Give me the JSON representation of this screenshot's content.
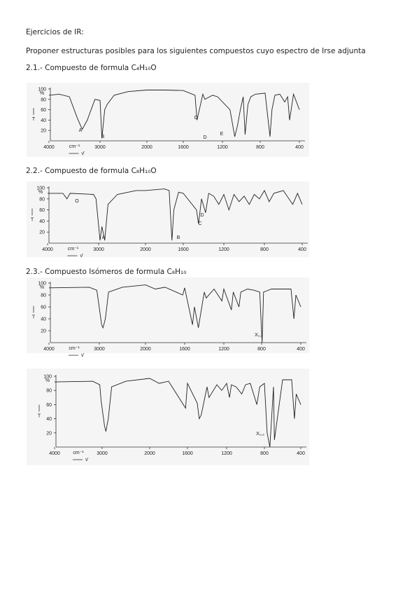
{
  "header": {
    "title": "Ejercicios de IR:",
    "instruction": "Proponer estructuras posibles para los siguientes compuestos cuyo espectro de Irse adjunta"
  },
  "sections": [
    {
      "heading": "2.1.- Compuesto de formula  C₄H₁₀O",
      "spectra": [
        {
          "y_label": "T",
          "y_unit": "%",
          "x_unit": "cm⁻¹",
          "x_symbol": "ν̄",
          "yticks": [
            100,
            80,
            60,
            40,
            20
          ],
          "xticks": [
            4000,
            3000,
            2000,
            1600,
            1200,
            800,
            400
          ],
          "peak_labels": [
            "A",
            "B",
            "C",
            "D",
            "E"
          ],
          "trace": {
            "x": [
              4000,
              3800,
              3600,
              3450,
              3350,
              3250,
              3100,
              3000,
              2960,
              2900,
              2850,
              2700,
              2400,
              2000,
              1800,
              1600,
              1480,
              1460,
              1400,
              1380,
              1300,
              1250,
              1120,
              1070,
              1040,
              1010,
              980,
              960,
              930,
              900,
              850,
              750,
              700,
              680,
              650,
              600,
              550,
              520,
              500,
              460,
              420,
              400
            ],
            "y": [
              88,
              90,
              85,
              45,
              22,
              40,
              80,
              78,
              5,
              60,
              70,
              88,
              95,
              98,
              98,
              97,
              88,
              40,
              90,
              80,
              88,
              85,
              60,
              8,
              30,
              60,
              85,
              12,
              70,
              85,
              90,
              92,
              8,
              60,
              88,
              90,
              75,
              85,
              40,
              90,
              70,
              60
            ]
          }
        }
      ]
    },
    {
      "heading": "2.2.- Compuesto de formula C₈H₁₀O",
      "spectra": [
        {
          "y_label": "T",
          "y_unit": "%",
          "x_unit": "cm⁻¹",
          "x_symbol": "ν̄",
          "yticks": [
            100,
            80,
            60,
            40,
            20
          ],
          "xticks": [
            4000,
            3000,
            2000,
            1600,
            1200,
            800,
            400
          ],
          "peak_labels": [
            "O",
            "A",
            "B",
            "C",
            "D"
          ],
          "trace": {
            "x": [
              4000,
              3700,
              3620,
              3560,
              3100,
              3050,
              2970,
              2930,
              2870,
              2800,
              2600,
              2200,
              2000,
              1800,
              1750,
              1720,
              1700,
              1650,
              1600,
              1470,
              1450,
              1420,
              1380,
              1350,
              1300,
              1250,
              1200,
              1150,
              1100,
              1050,
              1000,
              950,
              900,
              850,
              800,
              750,
              700,
              600,
              500,
              450,
              400
            ],
            "y": [
              90,
              90,
              80,
              90,
              88,
              80,
              5,
              30,
              5,
              70,
              88,
              95,
              95,
              98,
              95,
              5,
              60,
              92,
              90,
              60,
              35,
              80,
              55,
              90,
              85,
              70,
              88,
              60,
              88,
              75,
              85,
              70,
              88,
              80,
              95,
              75,
              90,
              95,
              70,
              90,
              70
            ]
          }
        }
      ]
    },
    {
      "heading": "2.3.- Compuesto Isómeros de formula C₈H₁₀",
      "spectra": [
        {
          "y_label": "T",
          "y_unit": "%",
          "x_unit": "cm⁻¹",
          "x_symbol": "ν̄",
          "yticks": [
            100,
            80,
            60,
            40,
            20
          ],
          "xticks": [
            4000,
            3000,
            2000,
            1600,
            1200,
            800,
            400
          ],
          "peak_labels": [
            "X₁,₂"
          ],
          "trace": {
            "x": [
              4000,
              3200,
              3050,
              3020,
              2950,
              2920,
              2870,
              2800,
              2500,
              2000,
              1900,
              1800,
              1620,
              1600,
              1520,
              1500,
              1460,
              1400,
              1380,
              1300,
              1220,
              1200,
              1120,
              1100,
              1040,
              1020,
              950,
              880,
              820,
              795,
              780,
              700,
              500,
              470,
              450,
              400
            ],
            "y": [
              92,
              93,
              88,
              70,
              30,
              25,
              40,
              85,
              93,
              97,
              90,
              93,
              80,
              92,
              30,
              60,
              25,
              85,
              75,
              90,
              70,
              90,
              55,
              85,
              60,
              85,
              90,
              88,
              85,
              0,
              85,
              90,
              90,
              40,
              80,
              60
            ]
          }
        },
        {
          "y_label": "T",
          "y_unit": "%",
          "x_unit": "cm⁻¹",
          "x_symbol": "ν̄",
          "yticks": [
            100,
            80,
            60,
            40,
            20
          ],
          "xticks": [
            4000,
            3000,
            2000,
            1600,
            1200,
            800,
            400
          ],
          "peak_labels": [
            "X₁,₃"
          ],
          "trace": {
            "x": [
              4000,
              3200,
              3050,
              3020,
              2950,
              2920,
              2870,
              2800,
              2500,
              2000,
              1900,
              1800,
              1620,
              1600,
              1500,
              1480,
              1460,
              1400,
              1380,
              1300,
              1250,
              1200,
              1170,
              1150,
              1100,
              1040,
              1000,
              950,
              880,
              850,
              800,
              770,
              740,
              700,
              690,
              600,
              500,
              470,
              450,
              400
            ],
            "y": [
              92,
              93,
              88,
              65,
              30,
              22,
              40,
              85,
              93,
              97,
              90,
              93,
              55,
              90,
              62,
              40,
              45,
              85,
              70,
              88,
              80,
              90,
              70,
              88,
              85,
              75,
              88,
              90,
              60,
              85,
              90,
              20,
              0,
              85,
              10,
              95,
              95,
              40,
              75,
              60
            ]
          }
        }
      ]
    }
  ]
}
